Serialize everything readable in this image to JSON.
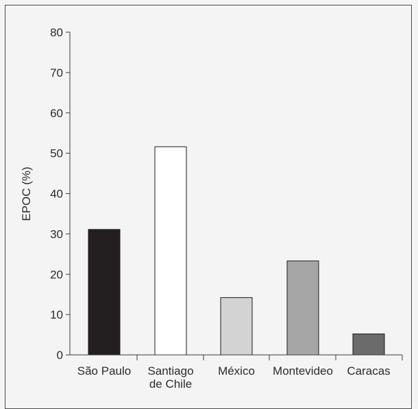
{
  "chart_data": {
    "type": "bar",
    "title": "",
    "xlabel": "",
    "ylabel": "EPOC (%)",
    "ylim": [
      0,
      80
    ],
    "yticks": [
      0,
      10,
      20,
      30,
      40,
      50,
      60,
      70,
      80
    ],
    "grid": false,
    "legend": "none",
    "categories": [
      [
        "São Paulo"
      ],
      [
        "Santiago",
        "de Chile"
      ],
      [
        "México"
      ],
      [
        "Montevideo"
      ],
      [
        "Caracas"
      ]
    ],
    "values": [
      31.1,
      51.6,
      14.2,
      23.3,
      5.2
    ],
    "colors": [
      "#231f20",
      "#ffffff",
      "#d3d3d3",
      "#a6a6a6",
      "#6b6b6b"
    ]
  }
}
